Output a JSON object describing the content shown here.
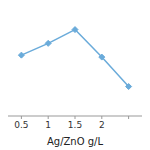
{
  "chart_data": {
    "type": "line",
    "x": [
      0.5,
      1.0,
      1.5,
      2.0,
      2.5
    ],
    "values": [
      62,
      74,
      88,
      60,
      30
    ],
    "xlabel": "Ag/ZnO g/L",
    "xlim": [
      0.25,
      2.75
    ],
    "xticks": [
      0.5,
      1,
      1.5,
      2,
      {
        "value": 2.5,
        "label": null
      }
    ],
    "ylim": [
      0,
      110
    ],
    "color": "#6aabda",
    "marker": "diamond",
    "tick_labels": "x",
    "grid": false
  }
}
